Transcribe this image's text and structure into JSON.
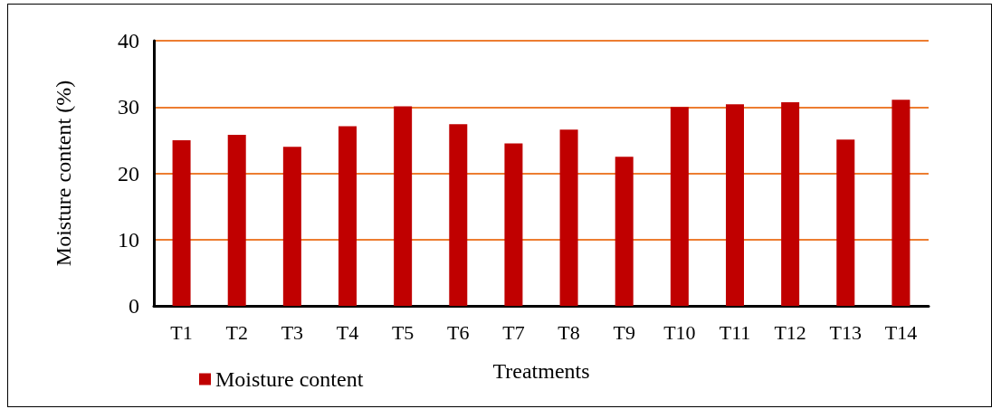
{
  "chart_data": {
    "type": "bar",
    "xlabel": "Treatments",
    "ylabel": "Moisture content (%)",
    "categories": [
      "T1",
      "T2",
      "T3",
      "T4",
      "T5",
      "T6",
      "T7",
      "T8",
      "T9",
      "T10",
      "T11",
      "T12",
      "T13",
      "T14"
    ],
    "series": [
      {
        "name": "Moisture content",
        "color": "#c00000",
        "values": [
          25.0,
          25.8,
          24.0,
          27.1,
          30.1,
          27.4,
          24.5,
          26.6,
          22.5,
          30.0,
          30.4,
          30.7,
          25.1,
          31.1
        ]
      }
    ],
    "ylim": [
      0,
      40
    ],
    "yticks": [
      0,
      10,
      20,
      30,
      40
    ],
    "grid": true,
    "legend": "bottom left"
  }
}
